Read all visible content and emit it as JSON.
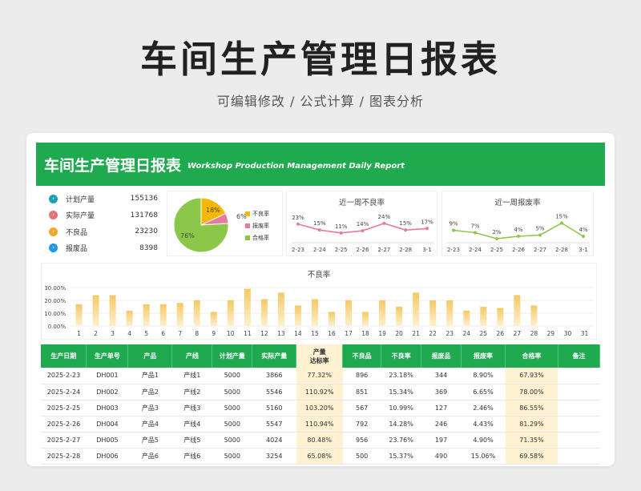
{
  "header": {
    "title": "车间生产管理日报表",
    "subtitle": "可编辑修改 / 公式计算 / 图表分析"
  },
  "banner": {
    "title": "车间生产管理日报表",
    "title_en": "Workshop Production Management Daily Report"
  },
  "stats": [
    {
      "label": "计划产量",
      "value": "155136",
      "color": "#17a2b8",
      "icon": "chevron-right-icon"
    },
    {
      "label": "实际产量",
      "value": "131768",
      "color": "#e57373",
      "icon": "chevron-right-icon"
    },
    {
      "label": "不良品",
      "value": "23230",
      "color": "#f5a623",
      "icon": "chevron-right-icon"
    },
    {
      "label": "报废品",
      "value": "8398",
      "color": "#2196f3",
      "icon": "chevron-right-icon"
    }
  ],
  "colors": {
    "green": "#1faa4f",
    "pie_defect": "#f5b800",
    "pie_scrap": "#e87a9d",
    "pie_pass": "#8bc84a",
    "bar": "#f5c964",
    "defect_line": "#e87a9d",
    "scrap_line": "#8bc84a"
  },
  "chart_data": [
    {
      "type": "pie",
      "labels": [
        "不良率",
        "报废率",
        "合格率"
      ],
      "values": [
        18,
        6,
        76
      ],
      "value_labels": [
        "18%",
        "6%",
        "76%"
      ]
    },
    {
      "type": "line",
      "title": "近一周不良率",
      "categories": [
        "2-23",
        "2-24",
        "2-25",
        "2-26",
        "2-27",
        "2-28",
        "3-1"
      ],
      "values": [
        23,
        15,
        11,
        14,
        24,
        15,
        17
      ],
      "value_labels": [
        "23%",
        "15%",
        "11%",
        "14%",
        "24%",
        "15%",
        "17%"
      ]
    },
    {
      "type": "line",
      "title": "近一周报废率",
      "categories": [
        "2-23",
        "2-24",
        "2-25",
        "2-26",
        "2-27",
        "2-28",
        "3-1"
      ],
      "values": [
        9,
        7,
        2,
        4,
        5,
        15,
        4
      ],
      "value_labels": [
        "9%",
        "7%",
        "2%",
        "4%",
        "5%",
        "15%",
        "4%"
      ]
    },
    {
      "type": "bar",
      "title": "不良率",
      "categories": [
        "1",
        "2",
        "3",
        "4",
        "5",
        "6",
        "7",
        "8",
        "9",
        "10",
        "11",
        "12",
        "13",
        "14",
        "15",
        "16",
        "17",
        "18",
        "19",
        "20",
        "21",
        "22",
        "23",
        "24",
        "25",
        "26",
        "27",
        "28",
        "29",
        "30",
        "31"
      ],
      "values": [
        17,
        24,
        24,
        12,
        17,
        17,
        18,
        20,
        11,
        20,
        29,
        21,
        26,
        16,
        21,
        11,
        20,
        11,
        20,
        15,
        26,
        20,
        20,
        12,
        15,
        14,
        24,
        16,
        0,
        0,
        0
      ],
      "yticks": [
        "0.00%",
        "10.00%",
        "20.00%",
        "30.00%"
      ],
      "ylim": [
        0,
        30
      ]
    }
  ],
  "table": {
    "headers": [
      "生产日期",
      "生产单号",
      "产品",
      "产线",
      "计划产量",
      "实际产量",
      "产量\n达标率",
      "不良品",
      "不良率",
      "报废品",
      "报废率",
      "合格率",
      "备注"
    ],
    "rows": [
      [
        "2025-2-23",
        "DH001",
        "产品1",
        "产线1",
        "5000",
        "3866",
        "77.32%",
        "896",
        "23.18%",
        "344",
        "8.90%",
        "67.93%",
        ""
      ],
      [
        "2025-2-24",
        "DH002",
        "产品2",
        "产线2",
        "5000",
        "5546",
        "110.92%",
        "851",
        "15.34%",
        "369",
        "6.65%",
        "78.00%",
        ""
      ],
      [
        "2025-2-25",
        "DH003",
        "产品3",
        "产线3",
        "5000",
        "5160",
        "103.20%",
        "567",
        "10.99%",
        "127",
        "2.46%",
        "86.55%",
        ""
      ],
      [
        "2025-2-26",
        "DH004",
        "产品4",
        "产线4",
        "5000",
        "5547",
        "110.94%",
        "792",
        "14.28%",
        "246",
        "4.43%",
        "81.29%",
        ""
      ],
      [
        "2025-2-27",
        "DH005",
        "产品5",
        "产线5",
        "5000",
        "4024",
        "80.48%",
        "956",
        "23.76%",
        "197",
        "4.90%",
        "71.35%",
        ""
      ],
      [
        "2025-2-28",
        "DH006",
        "产品6",
        "产线6",
        "5000",
        "3254",
        "65.08%",
        "500",
        "15.37%",
        "490",
        "15.06%",
        "69.58%",
        ""
      ]
    ]
  }
}
